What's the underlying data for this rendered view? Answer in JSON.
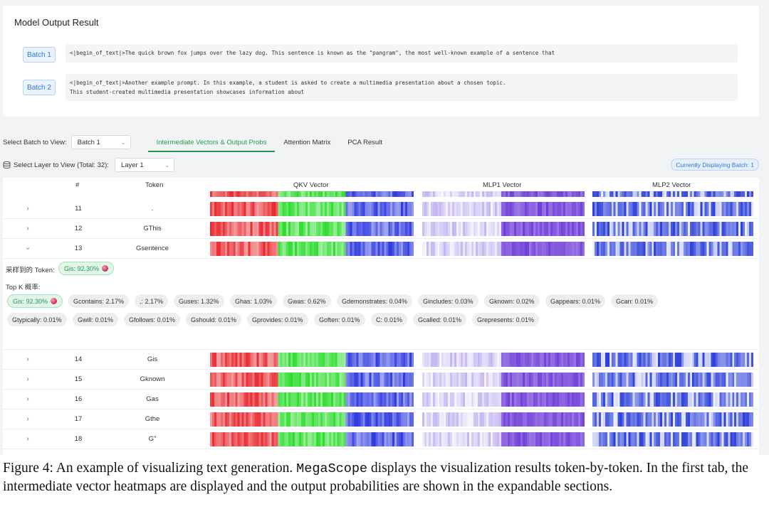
{
  "card": {
    "title": "Model Output Result",
    "batches": [
      {
        "label": "Batch 1",
        "text": "<|begin_of_text|>The quick brown fox jumps over the lazy dog. This sentence is known as the \"pangram\", the most well-known example of a sentence that"
      },
      {
        "label": "Batch 2",
        "text": "<|begin_of_text|>Another example prompt. In this example, a student is asked to create a multimedia presentation about a chosen topic.\nThis student-created multimedia presentation showcases information about"
      }
    ]
  },
  "toolbar": {
    "batch_label": "Select Batch to View:",
    "batch_value": "Batch 1",
    "tabs": [
      {
        "label": "Intermediate Vectors & Output Probs",
        "active": true
      },
      {
        "label": "Attention Matrix",
        "active": false
      },
      {
        "label": "PCA Result",
        "active": false
      }
    ]
  },
  "layerbar": {
    "label": "Select Layer to View (Total: 32):",
    "layer_value": "Layer 1",
    "badge": "Currently Displaying Batch: 1"
  },
  "table": {
    "headers": {
      "num": "#",
      "token": "Token",
      "qkv": "QKV Vector",
      "mlp1": "MLP1 Vector",
      "mlp2": "MLP2 Vector"
    },
    "rows_before": [
      {
        "num": "11",
        "token": "."
      },
      {
        "num": "12",
        "token": "GThis"
      },
      {
        "num": "13",
        "token": "Gsentence",
        "expanded": true
      }
    ],
    "expanded": {
      "sampled_label": "采样到的 Token:",
      "sampled_value": "Gis: 92.30%",
      "topk_label": "Top K 概率:",
      "topk_row1": [
        "Gis: 92.30%",
        "Gcontains: 2.17%",
        ",: 2.17%",
        "Guses: 1.32%",
        "Ghas: 1.03%",
        "Gwas: 0.62%",
        "Gdemonstrates: 0.04%",
        "Gincludes: 0.03%",
        "Gknown: 0.02%",
        "Gappears: 0.01%",
        "Gcan: 0.01%"
      ],
      "topk_row2": [
        "Gtypically: 0.01%",
        "Gwill: 0.01%",
        "Gfollows: 0.01%",
        "Gshould: 0.01%",
        "Gprovides: 0.01%",
        "Goften: 0.01%",
        "C: 0.01%",
        "Gcalled: 0.01%",
        "Grepresents: 0.01%"
      ]
    },
    "rows_after": [
      {
        "num": "14",
        "token": "Gis"
      },
      {
        "num": "15",
        "token": "Gknown"
      },
      {
        "num": "16",
        "token": "Gas"
      },
      {
        "num": "17",
        "token": "Gthe"
      },
      {
        "num": "18",
        "token": "G\""
      }
    ],
    "colors": {
      "red": "#e8292f",
      "green": "#2ddc2d",
      "blue": "#2f3ae0",
      "purple": "#6f3fd8",
      "lavender": "#b9a9ee",
      "mlp2": "#2b3fd9"
    }
  },
  "caption": {
    "prefix": "Figure 4: An example of visualizing text generation. ",
    "mono": "MegaScope",
    "suffix": " displays the visualization results token-by-token. In the first tab, the intermediate vector heatmaps are displayed and the output probabilities are shown in the expandable sections."
  }
}
